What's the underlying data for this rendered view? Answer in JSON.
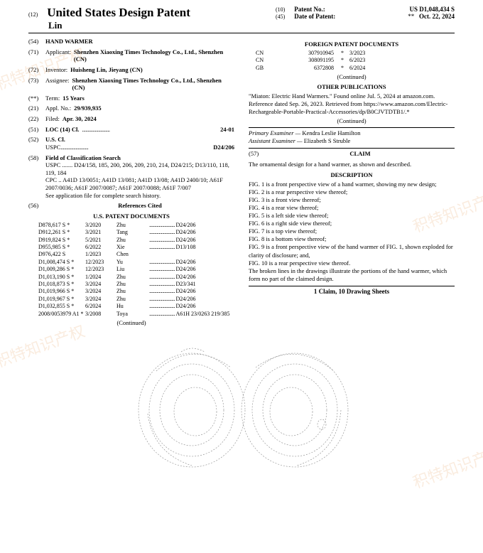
{
  "header": {
    "code12": "(12)",
    "title": "United States Design Patent",
    "author": "Lin",
    "code10": "(10)",
    "patentNoLabel": "Patent No.:",
    "patentNo": "US D1,048,434 S",
    "code45": "(45)",
    "dateLabel": "Date of Patent:",
    "dateStars": "**",
    "date": "Oct. 22, 2024"
  },
  "left": {
    "f54": {
      "num": "(54)",
      "label": "HAND WARMER"
    },
    "f71": {
      "num": "(71)",
      "label": "Applicant:",
      "val": "Shenzhen Xiaoxing Times Technology Co., Ltd., Shenzhen (CN)"
    },
    "f72": {
      "num": "(72)",
      "label": "Inventor:",
      "val": "Huisheng Lin, Jieyang (CN)"
    },
    "f73": {
      "num": "(73)",
      "label": "Assignee:",
      "val": "Shenzhen Xiaoxing Times Technology Co., Ltd., Shenzhen (CN)"
    },
    "fterm": {
      "num": "(**)",
      "label": "Term:",
      "val": "15 Years"
    },
    "f21": {
      "num": "(21)",
      "label": "Appl. No.:",
      "val": "29/939,935"
    },
    "f22": {
      "num": "(22)",
      "label": "Filed:",
      "val": "Apr. 30, 2024"
    },
    "f51": {
      "num": "(51)",
      "label": "LOC (14) Cl.",
      "val": "24-01"
    },
    "f52": {
      "num": "(52)",
      "label": "U.S. Cl.",
      "line": "USPC",
      "val": "D24/206"
    },
    "f58": {
      "num": "(58)",
      "label": "Field of Classification Search",
      "uspc": "USPC ....... D24/158, 185, 200, 206, 209, 210, 214, D24/215; D13/110, 118, 119, 184",
      "cpc": "CPC .. A41D 13/0051; A41D 13/081; A41D 13/08; A41D 2400/10; A61F 2007/0036; A61F 2007/0087; A61F 2007/0088; A61F 7/007",
      "seeapp": "See application file for complete search history."
    },
    "f56": {
      "num": "(56)",
      "label": "References Cited"
    },
    "uspatHead": "U.S. PATENT DOCUMENTS",
    "refs": [
      {
        "n": "D878,617 S",
        "s": "*",
        "d": "3/2020",
        "a": "Zhu",
        "c": "D24/206"
      },
      {
        "n": "D912,261 S",
        "s": "*",
        "d": "3/2021",
        "a": "Tang",
        "c": "D24/206"
      },
      {
        "n": "D919,824 S",
        "s": "*",
        "d": "5/2021",
        "a": "Zhu",
        "c": "D24/206"
      },
      {
        "n": "D955,985 S",
        "s": "*",
        "d": "6/2022",
        "a": "Xie",
        "c": "D13/108"
      },
      {
        "n": "D976,422 S",
        "s": "",
        "d": "1/2023",
        "a": "Chen",
        "c": ""
      },
      {
        "n": "D1,008,474 S",
        "s": "*",
        "d": "12/2023",
        "a": "Yu",
        "c": "D24/206"
      },
      {
        "n": "D1,009,286 S",
        "s": "*",
        "d": "12/2023",
        "a": "Liu",
        "c": "D24/206"
      },
      {
        "n": "D1,013,190 S",
        "s": "*",
        "d": "1/2024",
        "a": "Zhu",
        "c": "D24/206"
      },
      {
        "n": "D1,018,873 S",
        "s": "*",
        "d": "3/2024",
        "a": "Zhu",
        "c": "D23/341"
      },
      {
        "n": "D1,019,966 S",
        "s": "*",
        "d": "3/2024",
        "a": "Zhu",
        "c": "D24/206"
      },
      {
        "n": "D1,019,967 S",
        "s": "*",
        "d": "3/2024",
        "a": "Zhu",
        "c": "D24/206"
      },
      {
        "n": "D1,032,855 S",
        "s": "*",
        "d": "6/2024",
        "a": "Hu",
        "c": "D24/206"
      },
      {
        "n": "2008/0053979 A1",
        "s": "*",
        "d": "3/2008",
        "a": "Toya",
        "c": "A61H 23/0263 219/385"
      }
    ],
    "continued": "(Continued)"
  },
  "right": {
    "foreignHead": "FOREIGN PATENT DOCUMENTS",
    "foreign": [
      {
        "cc": "CN",
        "n": "307910945",
        "s": "*",
        "d": "3/2023"
      },
      {
        "cc": "CN",
        "n": "308091195",
        "s": "*",
        "d": "6/2023"
      },
      {
        "cc": "GB",
        "n": "6372808",
        "s": "*",
        "d": "6/2024"
      }
    ],
    "continued": "(Continued)",
    "otherHead": "OTHER PUBLICATIONS",
    "other": "\"Miaton: Electric Hand Warmers.\" Found online Jul. 5, 2024 at amazon.com. Reference dated Sep. 26, 2023. Retrieved from https://www.amazon.com/Electric-Rechargeable-Portable-Practical-Accessories/dp/B0CJVTDTB1/.*",
    "primaryLabel": "Primary Examiner —",
    "primary": "Kendra Leslie Hamilton",
    "assistantLabel": "Assistant Examiner —",
    "assistant": "Elizabeth S Struble",
    "claimNum": "(57)",
    "claimHead": "CLAIM",
    "claimText": "The ornamental design for a hand warmer, as shown and described.",
    "descHead": "DESCRIPTION",
    "desc": [
      "FIG. 1 is a front perspective view of a hand warmer, showing my new design;",
      "FIG. 2 is a rear perspective view thereof;",
      "FIG. 3 is a front view thereof;",
      "FIG. 4 is a rear view thereof;",
      "FIG. 5 is a left side view thereof;",
      "FIG. 6 is a right side view thereof;",
      "FIG. 7 is a top view thereof;",
      "FIG. 8 is a bottom view thereof;",
      "FIG. 9 is a front perspective view of the hand warmer of FIG. 1, shown exploded for clarity of disclosure; and,",
      "FIG. 10 is a rear perspective view thereof.",
      "The broken lines in the drawings illustrate the portions of the hand warmer, which form no part of the claimed design."
    ],
    "claimCount": "1 Claim, 10 Drawing Sheets"
  },
  "watermarks": [
    "积特知识产权",
    "积特知识产权",
    "积特知识产权",
    "积特知识产权"
  ]
}
